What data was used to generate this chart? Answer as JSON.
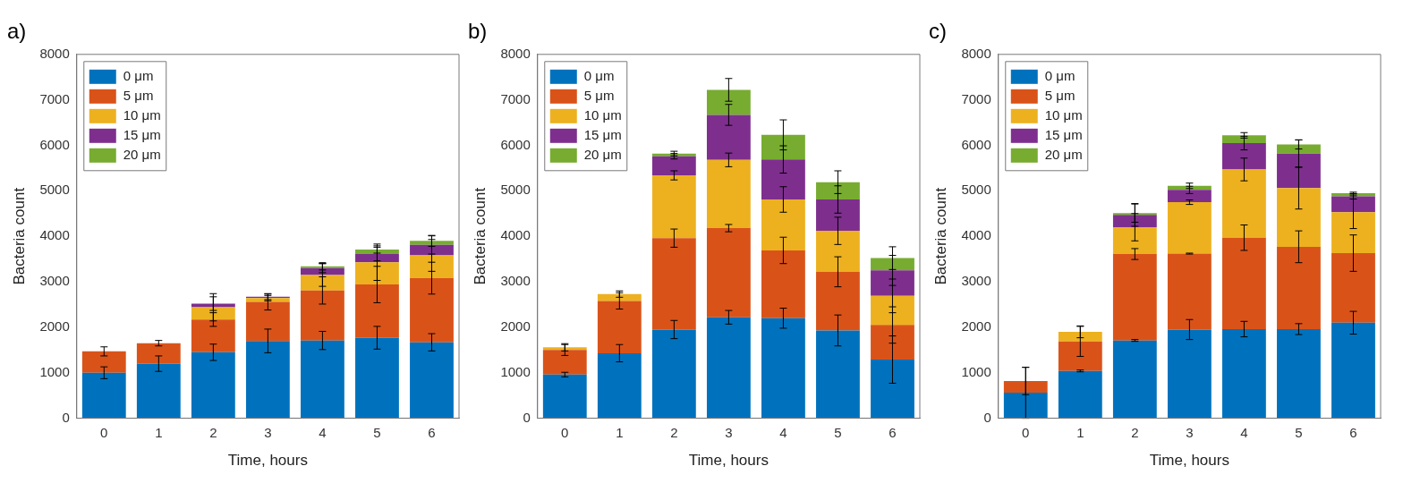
{
  "chart_data": [
    {
      "type": "bar",
      "title": "a)",
      "xlabel": "Time, hours",
      "ylabel": "Bacteria count",
      "categories": [
        "0",
        "1",
        "2",
        "3",
        "4",
        "5",
        "6"
      ],
      "stacked": true,
      "ylim": [
        0,
        8000
      ],
      "yticks": [
        0,
        1000,
        2000,
        3000,
        4000,
        5000,
        6000,
        7000,
        8000
      ],
      "grid": false,
      "legend": "top left",
      "series": [
        {
          "name": "0 μm",
          "color": "#0072bd",
          "values": [
            1000,
            1200,
            1450,
            1700,
            1710,
            1770,
            1670
          ],
          "errors": [
            130,
            170,
            180,
            260,
            200,
            250,
            190
          ]
        },
        {
          "name": "5 μm",
          "color": "#d95319",
          "values": [
            470,
            450,
            720,
            860,
            1100,
            1170,
            1410
          ],
          "errors": [
            100,
            60,
            150,
            180,
            300,
            400,
            350
          ]
        },
        {
          "name": "10 μm",
          "color": "#edb120",
          "values": [
            null,
            null,
            270,
            80,
            340,
            490,
            500
          ],
          "errors": [
            null,
            null,
            300,
            60,
            250,
            400,
            350
          ]
        },
        {
          "name": "15 μm",
          "color": "#7e2f8e",
          "values": [
            null,
            null,
            80,
            30,
            150,
            180,
            230
          ],
          "errors": [
            null,
            null,
            150,
            60,
            100,
            150,
            200
          ]
        },
        {
          "name": "20 μm",
          "color": "#77ac30",
          "values": [
            null,
            null,
            null,
            null,
            40,
            100,
            90
          ],
          "errors": [
            null,
            null,
            null,
            null,
            80,
            80,
            120
          ]
        }
      ]
    },
    {
      "type": "bar",
      "title": "b)",
      "xlabel": "Time, hours",
      "ylabel": "Bacteria count",
      "categories": [
        "0",
        "1",
        "2",
        "3",
        "4",
        "5",
        "6"
      ],
      "stacked": true,
      "ylim": [
        0,
        8000
      ],
      "yticks": [
        0,
        1000,
        2000,
        3000,
        4000,
        5000,
        6000,
        7000,
        8000
      ],
      "grid": false,
      "legend": "top left",
      "series": [
        {
          "name": "0 μm",
          "color": "#0072bd",
          "values": [
            960,
            1430,
            1950,
            2220,
            2200,
            1930,
            1290
          ],
          "errors": [
            50,
            190,
            200,
            150,
            220,
            340,
            520
          ]
        },
        {
          "name": "5 μm",
          "color": "#d95319",
          "values": [
            540,
            1150,
            2010,
            1960,
            1490,
            1290,
            760
          ],
          "errors": [
            120,
            180,
            200,
            80,
            290,
            330,
            400
          ]
        },
        {
          "name": "10 μm",
          "color": "#edb120",
          "values": [
            60,
            150,
            1380,
            1500,
            1120,
            900,
            640
          ],
          "errors": [
            80,
            70,
            100,
            150,
            280,
            300,
            370
          ]
        },
        {
          "name": "15 μm",
          "color": "#7e2f8e",
          "values": [
            null,
            null,
            420,
            990,
            880,
            690,
            560
          ],
          "errors": [
            null,
            null,
            60,
            230,
            300,
            300,
            330
          ]
        },
        {
          "name": "20 μm",
          "color": "#77ac30",
          "values": [
            null,
            null,
            60,
            550,
            540,
            380,
            270
          ],
          "errors": [
            null,
            null,
            50,
            250,
            330,
            250,
            250
          ]
        }
      ]
    },
    {
      "type": "bar",
      "title": "c)",
      "xlabel": "Time, hours",
      "ylabel": "Bacteria count",
      "categories": [
        "0",
        "1",
        "2",
        "3",
        "4",
        "5",
        "6"
      ],
      "stacked": true,
      "ylim": [
        0,
        8000
      ],
      "yticks": [
        0,
        1000,
        2000,
        3000,
        4000,
        5000,
        6000,
        7000,
        8000
      ],
      "grid": false,
      "legend": "top left",
      "series": [
        {
          "name": "0 μm",
          "color": "#0072bd",
          "values": [
            560,
            1040,
            1710,
            1950,
            1960,
            1960,
            2100
          ],
          "errors": [
            560,
            20,
            20,
            220,
            170,
            120,
            250
          ]
        },
        {
          "name": "5 μm",
          "color": "#d95319",
          "values": [
            260,
            650,
            1900,
            1670,
            2010,
            1810,
            1530
          ],
          "errors": [
            300,
            330,
            120,
            10,
            280,
            350,
            400
          ]
        },
        {
          "name": "10 μm",
          "color": "#edb120",
          "values": [
            null,
            210,
            590,
            1130,
            1500,
            1290,
            900
          ],
          "errors": [
            null,
            130,
            300,
            50,
            250,
            460,
            360
          ]
        },
        {
          "name": "15 μm",
          "color": "#7e2f8e",
          "values": [
            null,
            null,
            270,
            270,
            580,
            760,
            350
          ],
          "errors": [
            null,
            null,
            250,
            80,
            150,
            300,
            60
          ]
        },
        {
          "name": "20 μm",
          "color": "#77ac30",
          "values": [
            null,
            null,
            40,
            90,
            170,
            200,
            70
          ],
          "errors": [
            null,
            null,
            200,
            60,
            60,
            100,
            20
          ]
        }
      ]
    }
  ]
}
